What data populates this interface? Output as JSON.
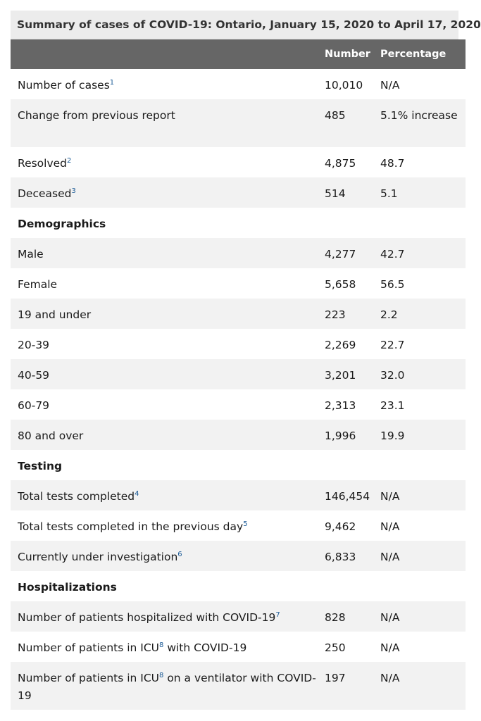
{
  "caption": "Summary of cases of COVID-19: Ontario, January 15, 2020 to April 17, 2020",
  "headers": {
    "label": "",
    "number": "Number",
    "percentage": "Percentage"
  },
  "rows": [
    {
      "label": "Number of cases",
      "sup": "1",
      "number": "10,010",
      "percentage": "N/A"
    },
    {
      "label": "Change from previous report",
      "sup": "",
      "number": "485",
      "percentage": "5.1% increase"
    },
    {
      "label": "Resolved",
      "sup": "2",
      "number": "4,875",
      "percentage": "48.7"
    },
    {
      "label": "Deceased",
      "sup": "3",
      "number": "514",
      "percentage": "5.1"
    },
    {
      "label": "Demographics",
      "section": true
    },
    {
      "label": "Male",
      "sup": "",
      "number": "4,277",
      "percentage": "42.7"
    },
    {
      "label": "Female",
      "sup": "",
      "number": "5,658",
      "percentage": "56.5"
    },
    {
      "label": "19 and under",
      "sup": "",
      "number": "223",
      "percentage": "2.2"
    },
    {
      "label": "20-39",
      "sup": "",
      "number": "2,269",
      "percentage": "22.7"
    },
    {
      "label": "40-59",
      "sup": "",
      "number": "3,201",
      "percentage": "32.0"
    },
    {
      "label": "60-79",
      "sup": "",
      "number": "2,313",
      "percentage": "23.1"
    },
    {
      "label": "80 and over",
      "sup": "",
      "number": "1,996",
      "percentage": "19.9"
    },
    {
      "label": "Testing",
      "section": true
    },
    {
      "label": "Total tests completed",
      "sup": "4",
      "number": "146,454",
      "percentage": "N/A"
    },
    {
      "label": "Total tests completed in the previous day",
      "sup": "5",
      "number": "9,462",
      "percentage": "N/A"
    },
    {
      "label": "Currently under investigation",
      "sup": "6",
      "number": "6,833",
      "percentage": "N/A"
    },
    {
      "label": "Hospitalizations",
      "section": true
    },
    {
      "label": "Number of patients hospitalized with COVID-19",
      "sup": "7",
      "number": "828",
      "percentage": "N/A"
    },
    {
      "label": "Number of patients in ICU",
      "sup": "8",
      "label_suffix": " with COVID-19",
      "number": "250",
      "percentage": "N/A"
    },
    {
      "label": "Number of patients in ICU",
      "sup": "8",
      "label_suffix": " on a ventilator with COVID-19",
      "number": "197",
      "percentage": "N/A"
    }
  ]
}
